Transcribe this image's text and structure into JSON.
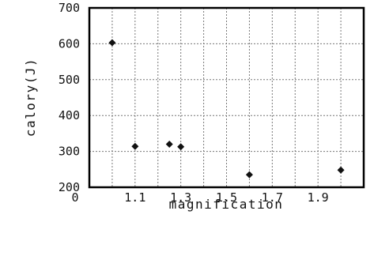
{
  "chart_data": {
    "type": "scatter",
    "title": "",
    "xlabel": "magnification",
    "ylabel": "calory(J)",
    "x_ticks": [
      "0",
      "1.1",
      "1.3",
      "1.5",
      "1.7",
      "1.9"
    ],
    "y_ticks": [
      "200",
      "300",
      "400",
      "500",
      "600",
      "700"
    ],
    "ylim": [
      200,
      700
    ],
    "grid": true,
    "series": [
      {
        "points": [
          {
            "x": 1.0,
            "y": 603
          },
          {
            "x": 1.1,
            "y": 314
          },
          {
            "x": 1.25,
            "y": 320
          },
          {
            "x": 1.3,
            "y": 313
          },
          {
            "x": 1.6,
            "y": 235
          },
          {
            "x": 2.0,
            "y": 248
          }
        ]
      }
    ]
  }
}
